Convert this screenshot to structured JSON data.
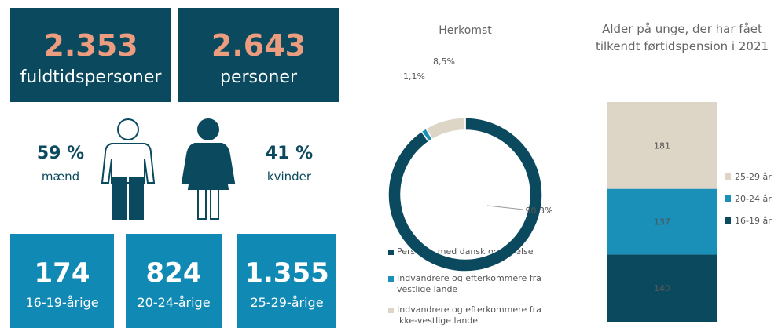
{
  "tiles": [
    {
      "value": "2.353",
      "label": "fuldtidspersoner"
    },
    {
      "value": "2.643",
      "label": "personer"
    }
  ],
  "gender": [
    {
      "value": "59 %",
      "label": "mænd"
    },
    {
      "value": "41 %",
      "label": "kvinder"
    }
  ],
  "age_tiles": [
    {
      "value": "174",
      "label": "16-19-årige"
    },
    {
      "value": "824",
      "label": "20-24-årige"
    },
    {
      "value": "1.355",
      "label": "25-29-årige"
    }
  ],
  "chart_data": [
    {
      "type": "donut",
      "title": "Herkomst",
      "categories": [
        "Personer med dansk oprindelse",
        "Indvandrere og efterkommere fra vestlige lande",
        "Indvandrere og efterkommere fra ikke-vestlige lande"
      ],
      "values": [
        90.3,
        1.1,
        8.5
      ],
      "value_labels": [
        "90,3%",
        "1,1%",
        "8,5%"
      ],
      "colors": [
        "#0b4a5e",
        "#1a8fb8",
        "#ddd5c5"
      ]
    },
    {
      "type": "stacked_bar",
      "title": "Alder på unge, der har fået tilkendt førtidspension i 2021",
      "series": [
        {
          "name": "16-19 år",
          "color": "#0b4a5e",
          "values": [
            140
          ]
        },
        {
          "name": "20-24 år",
          "color": "#1a8fb8",
          "values": [
            137
          ]
        },
        {
          "name": "25-29 år",
          "color": "#ddd5c5",
          "values": [
            181
          ]
        }
      ]
    }
  ]
}
